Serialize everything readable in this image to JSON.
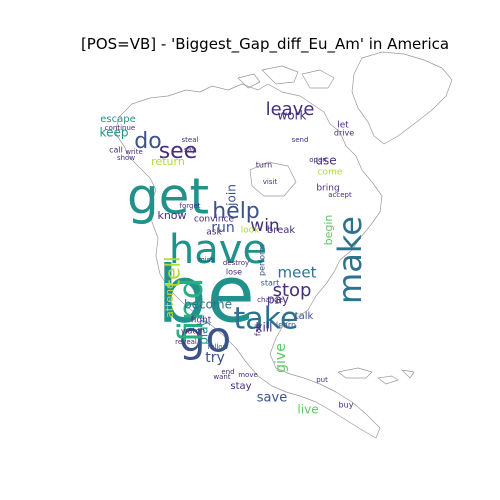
{
  "figure": {
    "title": "[POS=VB] - 'Biggest_Gap_diff_Eu_Am' in America"
  },
  "palette": {
    "teal": "#21918c",
    "teal_dark": "#2c728e",
    "indigo": "#3b528b",
    "purple": "#472d7b",
    "violet": "#440154",
    "green": "#5ec962",
    "lime": "#addc30",
    "yellow": "#c8d835",
    "seafoam": "#28ae80",
    "outline": "#9a9a9a"
  },
  "words": [
    {
      "text": "be",
      "color": "teal",
      "rotate": 0
    },
    {
      "text": "have",
      "color": "teal",
      "rotate": 0
    },
    {
      "text": "get",
      "color": "teal",
      "rotate": 0
    },
    {
      "text": "go",
      "color": "indigo",
      "rotate": 0
    },
    {
      "text": "find",
      "color": "seafoam",
      "rotate": -90
    },
    {
      "text": "take",
      "color": "teal_dark",
      "rotate": 0
    },
    {
      "text": "make",
      "color": "teal_dark",
      "rotate": -90
    },
    {
      "text": "help",
      "color": "indigo",
      "rotate": 0
    },
    {
      "text": "see",
      "color": "purple",
      "rotate": 0
    },
    {
      "text": "leave",
      "color": "purple",
      "rotate": 0
    },
    {
      "text": "do",
      "color": "indigo",
      "rotate": 0
    },
    {
      "text": "stop",
      "color": "purple",
      "rotate": 0
    },
    {
      "text": "win",
      "color": "purple",
      "rotate": 0
    },
    {
      "text": "meet",
      "color": "teal_dark",
      "rotate": 0
    },
    {
      "text": "tell",
      "color": "lime",
      "rotate": -90
    },
    {
      "text": "become",
      "color": "teal_dark",
      "rotate": 0
    },
    {
      "text": "give",
      "color": "green",
      "rotate": -90
    },
    {
      "text": "try",
      "color": "indigo",
      "rotate": 0
    },
    {
      "text": "save",
      "color": "indigo",
      "rotate": 0
    },
    {
      "text": "live",
      "color": "green",
      "rotate": 0
    },
    {
      "text": "return",
      "color": "lime",
      "rotate": 0
    },
    {
      "text": "run",
      "color": "indigo",
      "rotate": 0
    },
    {
      "text": "know",
      "color": "purple",
      "rotate": 0
    },
    {
      "text": "keep",
      "color": "teal",
      "rotate": 0
    },
    {
      "text": "work",
      "color": "purple",
      "rotate": 0
    },
    {
      "text": "use",
      "color": "purple",
      "rotate": 0
    },
    {
      "text": "pay",
      "color": "purple",
      "rotate": 0
    },
    {
      "text": "kill",
      "color": "purple",
      "rotate": 0
    },
    {
      "text": "play",
      "color": "teal",
      "rotate": -90
    },
    {
      "text": "attend",
      "color": "yellow",
      "rotate": -90
    },
    {
      "text": "begin",
      "color": "green",
      "rotate": -90
    },
    {
      "text": "talk",
      "color": "indigo",
      "rotate": 0
    },
    {
      "text": "stay",
      "color": "purple",
      "rotate": 0
    },
    {
      "text": "join",
      "color": "indigo",
      "rotate": -90
    },
    {
      "text": "escape",
      "color": "teal",
      "rotate": 0
    },
    {
      "text": "break",
      "color": "purple",
      "rotate": 0
    },
    {
      "text": "bring",
      "color": "purple",
      "rotate": 0
    },
    {
      "text": "come",
      "color": "lime",
      "rotate": 0
    },
    {
      "text": "let",
      "color": "purple",
      "rotate": 0
    },
    {
      "text": "drive",
      "color": "purple",
      "rotate": 0
    },
    {
      "text": "fight",
      "color": "purple",
      "rotate": 0
    },
    {
      "text": "watch",
      "color": "purple",
      "rotate": 0
    },
    {
      "text": "lose",
      "color": "purple",
      "rotate": 0
    },
    {
      "text": "change",
      "color": "purple",
      "rotate": 0
    },
    {
      "text": "learn",
      "color": "indigo",
      "rotate": 0
    },
    {
      "text": "start",
      "color": "indigo",
      "rotate": 0
    },
    {
      "text": "look",
      "color": "lime",
      "rotate": 0
    },
    {
      "text": "ask",
      "color": "purple",
      "rotate": 0
    },
    {
      "text": "convince",
      "color": "purple",
      "rotate": 0
    },
    {
      "text": "destroy",
      "color": "purple",
      "rotate": 0
    },
    {
      "text": "perform",
      "color": "indigo",
      "rotate": -90
    },
    {
      "text": "turn",
      "color": "purple",
      "rotate": 0
    },
    {
      "text": "call",
      "color": "purple",
      "rotate": 0
    },
    {
      "text": "buy",
      "color": "purple",
      "rotate": 0
    },
    {
      "text": "accept",
      "color": "purple",
      "rotate": 0
    },
    {
      "text": "want",
      "color": "purple",
      "rotate": 0
    },
    {
      "text": "end",
      "color": "purple",
      "rotate": 0
    },
    {
      "text": "put",
      "color": "purple",
      "rotate": 0
    },
    {
      "text": "fall",
      "color": "purple",
      "rotate": -90
    },
    {
      "text": "follow",
      "color": "indigo",
      "rotate": 0
    },
    {
      "text": "reveal",
      "color": "purple",
      "rotate": 0
    },
    {
      "text": "move",
      "color": "purple",
      "rotate": 0
    },
    {
      "text": "visit",
      "color": "purple",
      "rotate": 0
    },
    {
      "text": "steal",
      "color": "purple",
      "rotate": 0
    },
    {
      "text": "continue",
      "color": "purple",
      "rotate": 0
    },
    {
      "text": "say",
      "color": "purple",
      "rotate": 0
    },
    {
      "text": "show",
      "color": "purple",
      "rotate": 0
    },
    {
      "text": "write",
      "color": "purple",
      "rotate": 0
    },
    {
      "text": "forget",
      "color": "purple",
      "rotate": 0
    },
    {
      "text": "miss",
      "color": "purple",
      "rotate": 0
    },
    {
      "text": "open",
      "color": "purple",
      "rotate": 0
    },
    {
      "text": "send",
      "color": "purple",
      "rotate": 0
    }
  ]
}
